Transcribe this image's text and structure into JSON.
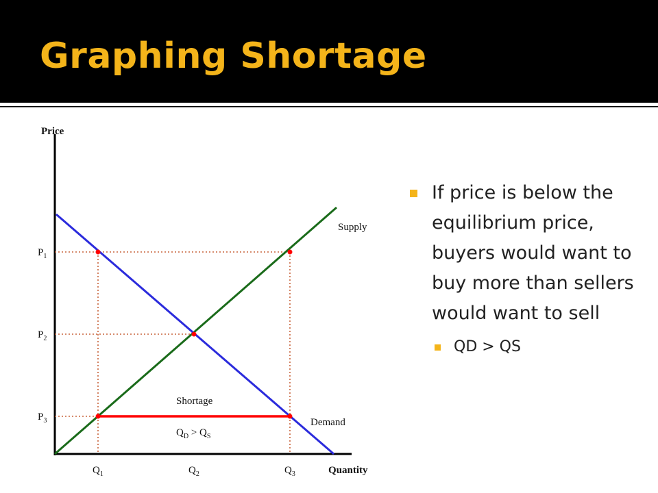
{
  "slide": {
    "title": "Graphing Shortage",
    "bullet": "If price is below the equilibrium price, buyers would want to buy more than sellers would want to sell",
    "sub_bullet": "QD > QS"
  },
  "diagram": {
    "y_axis_label": "Price",
    "x_axis_label": "Quantity",
    "price_labels": [
      {
        "main": "P",
        "sub": "1"
      },
      {
        "main": "P",
        "sub": "2"
      },
      {
        "main": "P",
        "sub": "3"
      }
    ],
    "quantity_labels": [
      {
        "main": "Q",
        "sub": "1"
      },
      {
        "main": "Q",
        "sub": "2"
      },
      {
        "main": "Q",
        "sub": "3"
      }
    ],
    "supply_label": "Supply",
    "demand_label": "Demand",
    "shortage_label": "Shortage",
    "inequality": {
      "q1": "Q",
      "s1": "D",
      "op": " > ",
      "q2": "Q",
      "s2": "S"
    },
    "colors": {
      "supply": "#1a6b1a",
      "demand": "#2b2bdc",
      "shortage": "#ff0000",
      "guide": "#c8643c",
      "point": "#ff0000",
      "accent": "#f4b41a"
    }
  }
}
